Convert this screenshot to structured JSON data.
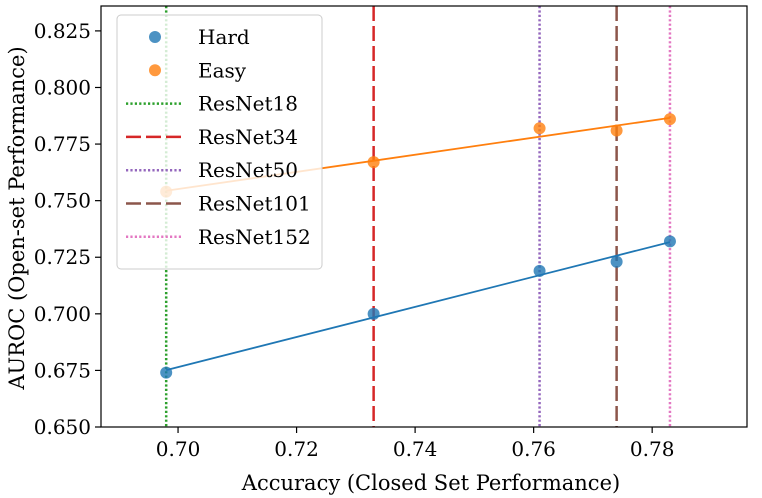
{
  "chart_data": {
    "type": "scatter",
    "title": "",
    "xlabel": "Accuracy (Closed Set Performance)",
    "ylabel": "AUROC (Open-set Performance)",
    "xlim": [
      0.687,
      0.796
    ],
    "ylim": [
      0.65,
      0.836
    ],
    "x_ticks": [
      0.7,
      0.72,
      0.74,
      0.76,
      0.78
    ],
    "x_tick_labels": [
      "0.70",
      "0.72",
      "0.74",
      "0.76",
      "0.78"
    ],
    "y_ticks": [
      0.65,
      0.675,
      0.7,
      0.725,
      0.75,
      0.775,
      0.8,
      0.825
    ],
    "y_tick_labels": [
      "0.650",
      "0.675",
      "0.700",
      "0.725",
      "0.750",
      "0.775",
      "0.800",
      "0.825"
    ],
    "grid": false,
    "legend_position": "top-left",
    "series": [
      {
        "name": "Hard",
        "color": "#1f77b4",
        "x": [
          0.698,
          0.733,
          0.761,
          0.774,
          0.783
        ],
        "y": [
          0.674,
          0.7,
          0.719,
          0.723,
          0.732
        ],
        "fit_line": true
      },
      {
        "name": "Easy",
        "color": "#ff7f0e",
        "x": [
          0.698,
          0.733,
          0.761,
          0.774,
          0.783
        ],
        "y": [
          0.754,
          0.767,
          0.782,
          0.781,
          0.786
        ],
        "fit_line": true
      }
    ],
    "vlines": [
      {
        "name": "ResNet18",
        "x": 0.698,
        "color": "#2ca02c",
        "style": "dotted"
      },
      {
        "name": "ResNet34",
        "x": 0.733,
        "color": "#d62728",
        "style": "dashed"
      },
      {
        "name": "ResNet50",
        "x": 0.761,
        "color": "#9467bd",
        "style": "dotted"
      },
      {
        "name": "ResNet101",
        "x": 0.774,
        "color": "#8c564b",
        "style": "dashed"
      },
      {
        "name": "ResNet152",
        "x": 0.783,
        "color": "#e377c2",
        "style": "dotted"
      }
    ]
  }
}
